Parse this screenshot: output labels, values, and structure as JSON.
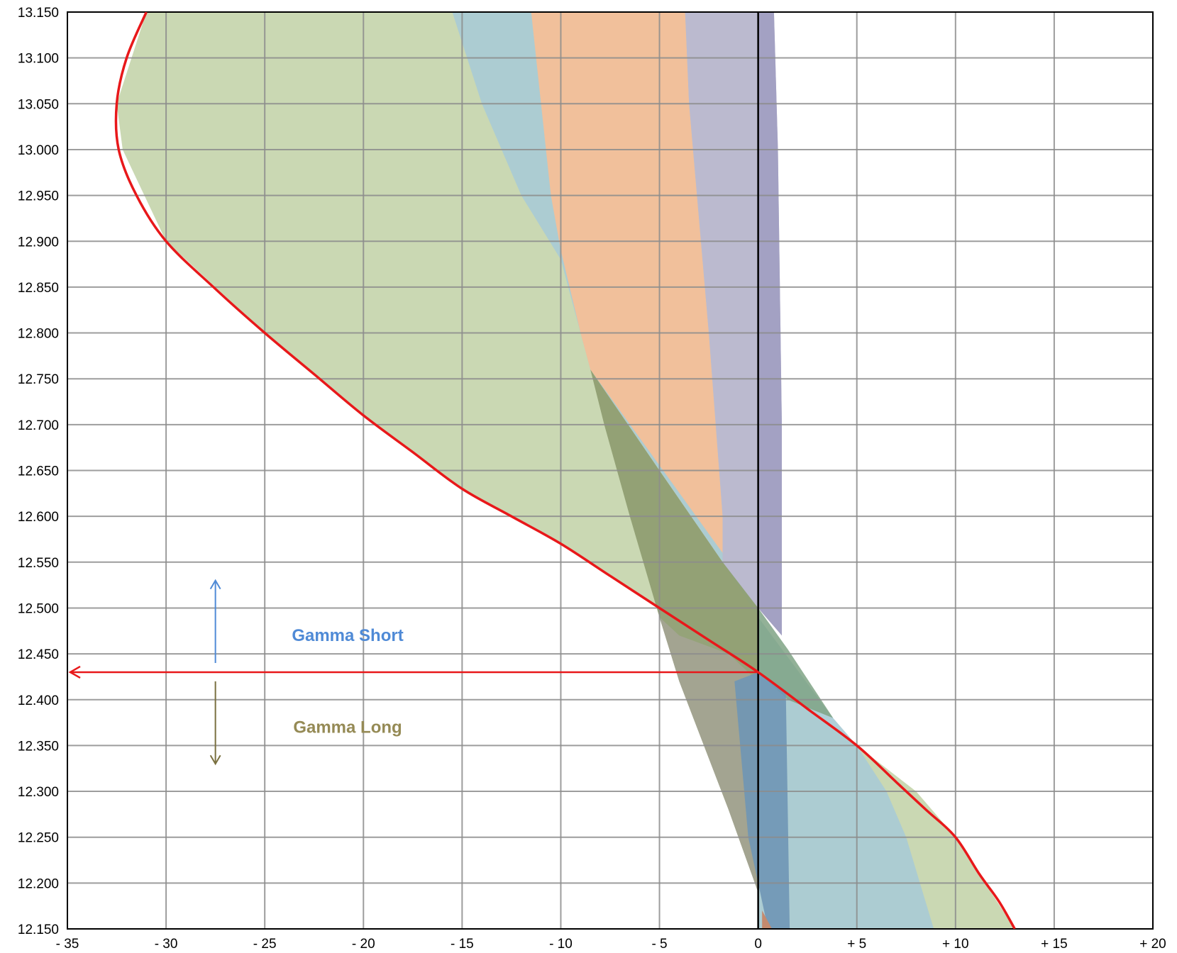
{
  "chart_data": {
    "type": "area",
    "title": "",
    "xlabel": "",
    "ylabel": "",
    "xlim": [
      -35,
      20
    ],
    "ylim": [
      12.15,
      13.15
    ],
    "x_ticks": [
      -35,
      -30,
      -25,
      -20,
      -15,
      -10,
      -5,
      0,
      5,
      10,
      15,
      20
    ],
    "x_tick_labels": [
      "- 35",
      "- 30",
      "- 25",
      "- 20",
      "- 15",
      "- 10",
      "- 5",
      "0",
      "+ 5",
      "+ 10",
      "+ 15",
      "+ 20"
    ],
    "y_ticks": [
      12.15,
      12.2,
      12.25,
      12.3,
      12.35,
      12.4,
      12.45,
      12.5,
      12.55,
      12.6,
      12.65,
      12.7,
      12.75,
      12.8,
      12.85,
      12.9,
      12.95,
      13.0,
      13.05,
      13.1,
      13.15
    ],
    "y_tick_labels": [
      "12.150",
      "12.200",
      "12.250",
      "12.300",
      "12.350",
      "12.400",
      "12.450",
      "12.500",
      "12.550",
      "12.600",
      "12.650",
      "12.700",
      "12.750",
      "12.800",
      "12.850",
      "12.900",
      "12.950",
      "13.000",
      "13.050",
      "13.100",
      "13.150"
    ],
    "grid": true,
    "legend": "none",
    "areas": [
      {
        "color": "#c6d5ac",
        "opacity": 0.92,
        "points": [
          [
            -31.0,
            13.15
          ],
          [
            -32.5,
            13.05
          ],
          [
            -32.2,
            13.0
          ],
          [
            -30.0,
            12.9
          ],
          [
            -25.0,
            12.8
          ],
          [
            -20.0,
            12.71
          ],
          [
            -15.0,
            12.63
          ],
          [
            -10.0,
            12.57
          ],
          [
            -5.0,
            12.5
          ],
          [
            0.0,
            12.43
          ],
          [
            1.5,
            12.41
          ],
          [
            3.0,
            12.385
          ],
          [
            5.0,
            12.35
          ],
          [
            8.0,
            12.3
          ],
          [
            10.0,
            12.25
          ],
          [
            11.5,
            12.2
          ],
          [
            13.0,
            12.15
          ],
          [
            0.0,
            12.15
          ],
          [
            0.0,
            13.15
          ]
        ]
      },
      {
        "color": "#a9cbd5",
        "opacity": 0.92,
        "points": [
          [
            -15.5,
            13.15
          ],
          [
            -14.0,
            13.05
          ],
          [
            -12.0,
            12.95
          ],
          [
            -10.0,
            12.88
          ],
          [
            -8.5,
            12.76
          ],
          [
            -1.8,
            12.55
          ],
          [
            0.0,
            12.49
          ],
          [
            3.8,
            12.38
          ],
          [
            5.0,
            12.35
          ],
          [
            6.5,
            12.3
          ],
          [
            7.5,
            12.25
          ],
          [
            8.2,
            12.2
          ],
          [
            8.9,
            12.15
          ],
          [
            0.0,
            12.15
          ],
          [
            0.0,
            13.15
          ]
        ]
      },
      {
        "color": "#f4bf98",
        "opacity": 0.95,
        "points": [
          [
            -11.5,
            13.15
          ],
          [
            -10.5,
            12.95
          ],
          [
            -10.0,
            12.89
          ],
          [
            -9.0,
            12.8
          ],
          [
            -8.5,
            12.76
          ],
          [
            -1.8,
            12.56
          ],
          [
            -1.8,
            12.6
          ],
          [
            -2.5,
            12.8
          ],
          [
            -3.5,
            13.05
          ],
          [
            -3.7,
            13.15
          ]
        ]
      },
      {
        "color": "#bcb8cf",
        "opacity": 0.95,
        "points": [
          [
            -3.7,
            13.15
          ],
          [
            -3.5,
            13.05
          ],
          [
            -2.5,
            12.8
          ],
          [
            -1.8,
            12.6
          ],
          [
            -1.8,
            12.55
          ],
          [
            0.0,
            12.5
          ],
          [
            1.2,
            12.47
          ],
          [
            1.2,
            12.7
          ],
          [
            1.0,
            13.0
          ],
          [
            0.8,
            13.15
          ]
        ]
      },
      {
        "color": "#a3a1c3",
        "opacity": 1,
        "points": [
          [
            0.0,
            13.15
          ],
          [
            0.8,
            13.15
          ],
          [
            1.0,
            13.0
          ],
          [
            1.2,
            12.7
          ],
          [
            1.2,
            12.47
          ],
          [
            0.0,
            12.5
          ]
        ]
      },
      {
        "color": "#8f9e72",
        "opacity": 0.95,
        "points": [
          [
            -8.5,
            12.76
          ],
          [
            -5.0,
            12.65
          ],
          [
            -1.8,
            12.55
          ],
          [
            0.0,
            12.5
          ],
          [
            0.0,
            12.19
          ],
          [
            -1.5,
            12.28
          ],
          [
            -4.0,
            12.42
          ],
          [
            -5.0,
            12.49
          ],
          [
            -6.5,
            12.6
          ],
          [
            -7.8,
            12.7
          ]
        ]
      },
      {
        "color": "#7fa385",
        "opacity": 0.85,
        "points": [
          [
            0.0,
            12.5
          ],
          [
            1.5,
            12.455
          ],
          [
            3.8,
            12.38
          ],
          [
            1.5,
            12.4
          ],
          [
            0.0,
            12.43
          ]
        ]
      },
      {
        "color": "#a4a494",
        "opacity": 0.9,
        "points": [
          [
            -5.0,
            12.49
          ],
          [
            -4.0,
            12.42
          ],
          [
            -1.5,
            12.28
          ],
          [
            0.0,
            12.19
          ],
          [
            0.0,
            12.42
          ],
          [
            -1.5,
            12.45
          ],
          [
            -4.0,
            12.47
          ]
        ]
      },
      {
        "color": "#6f96b5",
        "opacity": 0.9,
        "points": [
          [
            -1.2,
            12.42
          ],
          [
            0.0,
            12.43
          ],
          [
            1.4,
            12.41
          ],
          [
            1.6,
            12.15
          ],
          [
            0.5,
            12.15
          ],
          [
            -0.5,
            12.25
          ]
        ]
      },
      {
        "color": "#c48a6e",
        "opacity": 1,
        "points": [
          [
            0.2,
            12.15
          ],
          [
            0.2,
            12.17
          ],
          [
            0.7,
            12.15
          ]
        ]
      }
    ],
    "series": [
      {
        "color": "#e8181a",
        "points": [
          [
            -31.0,
            13.15
          ],
          [
            -32.0,
            13.1
          ],
          [
            -32.5,
            13.05
          ],
          [
            -32.4,
            13.0
          ],
          [
            -31.5,
            12.95
          ],
          [
            -30.0,
            12.9
          ],
          [
            -27.6,
            12.85
          ],
          [
            -25.0,
            12.8
          ],
          [
            -22.5,
            12.755
          ],
          [
            -20.0,
            12.71
          ],
          [
            -17.5,
            12.67
          ],
          [
            -15.0,
            12.63
          ],
          [
            -12.5,
            12.6
          ],
          [
            -10.0,
            12.57
          ],
          [
            -7.5,
            12.535
          ],
          [
            -5.0,
            12.5
          ],
          [
            -2.5,
            12.465
          ],
          [
            0.0,
            12.43
          ],
          [
            2.5,
            12.39
          ],
          [
            5.0,
            12.35
          ],
          [
            7.0,
            12.31
          ],
          [
            8.5,
            12.28
          ],
          [
            10.0,
            12.25
          ],
          [
            11.2,
            12.21
          ],
          [
            12.2,
            12.18
          ],
          [
            13.0,
            12.15
          ]
        ]
      }
    ],
    "zero_line_x": 0,
    "price_arrow": {
      "y": 12.43,
      "from_x": 0,
      "to_x": -35,
      "color": "#e8181a"
    },
    "annotations": [
      {
        "text": "Gamma Short",
        "x": -20.8,
        "y": 12.47,
        "color": "#4f8ad6"
      },
      {
        "text": "Gamma Long",
        "x": -20.8,
        "y": 12.37,
        "color": "#958a55"
      }
    ],
    "direction_arrows": [
      {
        "x": -27.5,
        "from_y": 12.44,
        "to_y": 12.53,
        "color": "#4f8ad6"
      },
      {
        "x": -27.5,
        "from_y": 12.42,
        "to_y": 12.33,
        "color": "#7a7040"
      }
    ]
  }
}
